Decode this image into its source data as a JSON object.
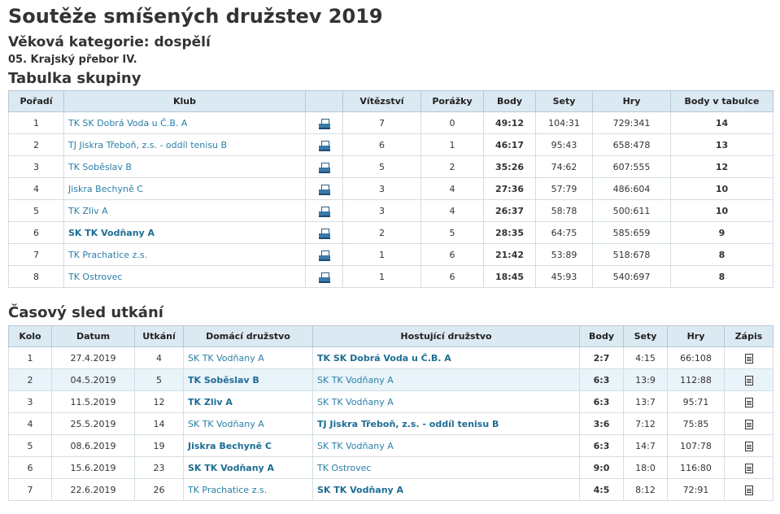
{
  "title": "Soutěže smíšených družstev 2019",
  "category": "Věková kategorie: dospělí",
  "competition": "05. Krajský přebor IV.",
  "group_heading": "Tabulka skupiny",
  "schedule_heading": "Časový sled utkání",
  "group_table": {
    "headers": [
      "Pořadí",
      "Klub",
      "",
      "Vítězství",
      "Porážky",
      "Body",
      "Sety",
      "Hry",
      "Body v tabulce"
    ],
    "rows": [
      {
        "pos": "1",
        "club": "TK SK Dobrá Voda u Č.B. A",
        "wins": "7",
        "losses": "0",
        "points": "49:12",
        "sets": "104:31",
        "games": "729:341",
        "table_points": "14",
        "bold": false
      },
      {
        "pos": "2",
        "club": "TJ Jiskra Třeboň, z.s. - oddíl tenisu B",
        "wins": "6",
        "losses": "1",
        "points": "46:17",
        "sets": "95:43",
        "games": "658:478",
        "table_points": "13",
        "bold": false
      },
      {
        "pos": "3",
        "club": "TK Soběslav B",
        "wins": "5",
        "losses": "2",
        "points": "35:26",
        "sets": "74:62",
        "games": "607:555",
        "table_points": "12",
        "bold": false
      },
      {
        "pos": "4",
        "club": "Jiskra Bechyně C",
        "wins": "3",
        "losses": "4",
        "points": "27:36",
        "sets": "57:79",
        "games": "486:604",
        "table_points": "10",
        "bold": false
      },
      {
        "pos": "5",
        "club": "TK Zliv A",
        "wins": "3",
        "losses": "4",
        "points": "26:37",
        "sets": "58:78",
        "games": "500:611",
        "table_points": "10",
        "bold": false
      },
      {
        "pos": "6",
        "club": "SK TK Vodňany A",
        "wins": "2",
        "losses": "5",
        "points": "28:35",
        "sets": "64:75",
        "games": "585:659",
        "table_points": "9",
        "bold": true
      },
      {
        "pos": "7",
        "club": "TK Prachatice z.s.",
        "wins": "1",
        "losses": "6",
        "points": "21:42",
        "sets": "53:89",
        "games": "518:678",
        "table_points": "8",
        "bold": false
      },
      {
        "pos": "8",
        "club": "TK Ostrovec",
        "wins": "1",
        "losses": "6",
        "points": "18:45",
        "sets": "45:93",
        "games": "540:697",
        "table_points": "8",
        "bold": false
      }
    ]
  },
  "schedule_table": {
    "headers": [
      "Kolo",
      "Datum",
      "Utkání",
      "Domácí družstvo",
      "Hostující družstvo",
      "Body",
      "Sety",
      "Hry",
      "Zápis"
    ],
    "rows": [
      {
        "round": "1",
        "date": "27.4.2019",
        "match": "4",
        "home": "SK TK Vodňany A",
        "away": "TK SK Dobrá Voda u Č.B. A",
        "winner": "away",
        "points": "2:7",
        "sets": "4:15",
        "games": "66:108"
      },
      {
        "round": "2",
        "date": "04.5.2019",
        "match": "5",
        "home": "TK Soběslav B",
        "away": "SK TK Vodňany A",
        "winner": "home",
        "points": "6:3",
        "sets": "13:9",
        "games": "112:88"
      },
      {
        "round": "3",
        "date": "11.5.2019",
        "match": "12",
        "home": "TK Zliv A",
        "away": "SK TK Vodňany A",
        "winner": "home",
        "points": "6:3",
        "sets": "13:7",
        "games": "95:71"
      },
      {
        "round": "4",
        "date": "25.5.2019",
        "match": "14",
        "home": "SK TK Vodňany A",
        "away": "TJ Jiskra Třeboň, z.s. - oddíl tenisu B",
        "winner": "away",
        "points": "3:6",
        "sets": "7:12",
        "games": "75:85"
      },
      {
        "round": "5",
        "date": "08.6.2019",
        "match": "19",
        "home": "Jiskra Bechyně C",
        "away": "SK TK Vodňany A",
        "winner": "home",
        "points": "6:3",
        "sets": "14:7",
        "games": "107:78"
      },
      {
        "round": "6",
        "date": "15.6.2019",
        "match": "23",
        "home": "SK TK Vodňany A",
        "away": "TK Ostrovec",
        "winner": "home",
        "points": "9:0",
        "sets": "18:0",
        "games": "116:80"
      },
      {
        "round": "7",
        "date": "22.6.2019",
        "match": "26",
        "home": "TK Prachatice z.s.",
        "away": "SK TK Vodňany A",
        "winner": "away",
        "points": "4:5",
        "sets": "8:12",
        "games": "72:91"
      }
    ]
  }
}
